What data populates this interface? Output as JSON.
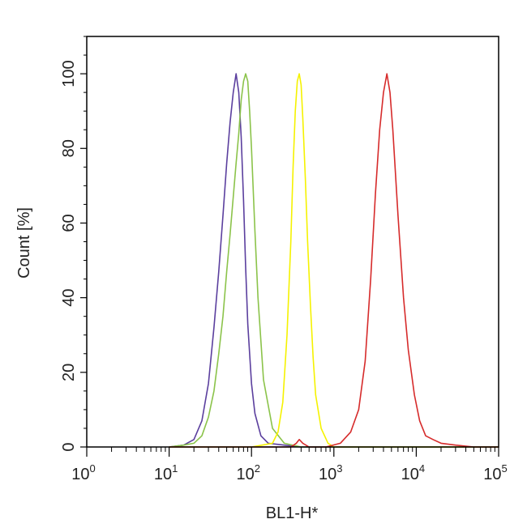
{
  "chart_data": {
    "type": "line",
    "xlabel": "BL1-H*",
    "ylabel": "Count  [%]",
    "xscale": "log",
    "xlim": [
      1,
      100000
    ],
    "ylim": [
      0,
      110
    ],
    "x_ticks": [
      {
        "base": "10",
        "exp": "0"
      },
      {
        "base": "10",
        "exp": "1"
      },
      {
        "base": "10",
        "exp": "2"
      },
      {
        "base": "10",
        "exp": "3"
      },
      {
        "base": "10",
        "exp": "4"
      },
      {
        "base": "10",
        "exp": "5"
      }
    ],
    "y_ticks": [
      "0",
      "20",
      "40",
      "60",
      "80",
      "100"
    ],
    "grid": false,
    "series": [
      {
        "color": "#5b3f9e",
        "x": [
          10,
          15,
          20,
          25,
          30,
          35,
          40,
          45,
          50,
          55,
          60,
          65,
          70,
          75,
          80,
          85,
          90,
          100,
          110,
          130,
          160,
          250,
          400,
          1000,
          100000
        ],
        "y": [
          0,
          0.5,
          2,
          7,
          17,
          32,
          47,
          62,
          76,
          87,
          95,
          100,
          95,
          83,
          66,
          48,
          33,
          17,
          9,
          3,
          1,
          0.5,
          0,
          0,
          0
        ]
      },
      {
        "color": "#8bc34a",
        "x": [
          10,
          15,
          20,
          25,
          30,
          35,
          40,
          45,
          50,
          55,
          60,
          65,
          70,
          75,
          80,
          85,
          90,
          95,
          100,
          110,
          120,
          140,
          180,
          250,
          400,
          100000
        ],
        "y": [
          0,
          0.5,
          1,
          3,
          8,
          15,
          25,
          35,
          47,
          57,
          67,
          76,
          84,
          93,
          98,
          100,
          98,
          90,
          80,
          58,
          40,
          18,
          5,
          1,
          0,
          0
        ]
      },
      {
        "color": "#f5f200",
        "x": [
          10,
          100,
          180,
          210,
          240,
          270,
          300,
          320,
          340,
          360,
          380,
          400,
          420,
          450,
          480,
          520,
          560,
          600,
          700,
          850,
          1000,
          100000
        ],
        "y": [
          0,
          0,
          1,
          4,
          12,
          30,
          55,
          75,
          90,
          98,
          100,
          97,
          88,
          72,
          55,
          38,
          24,
          14,
          5,
          1,
          0,
          0
        ]
      },
      {
        "color": "#d62b2b",
        "x": [
          10,
          300,
          350,
          380,
          420,
          500,
          800,
          1200,
          1600,
          2000,
          2400,
          2800,
          3200,
          3600,
          4000,
          4400,
          4800,
          5200,
          6000,
          7000,
          8000,
          9500,
          11000,
          13000,
          16000,
          20000,
          30000,
          50000,
          100000
        ],
        "y": [
          0,
          0,
          1,
          2,
          1,
          0,
          0,
          1,
          4,
          10,
          23,
          45,
          68,
          85,
          95,
          100,
          95,
          85,
          62,
          40,
          26,
          14,
          7,
          3,
          2,
          1,
          0.5,
          0,
          0
        ]
      }
    ]
  }
}
